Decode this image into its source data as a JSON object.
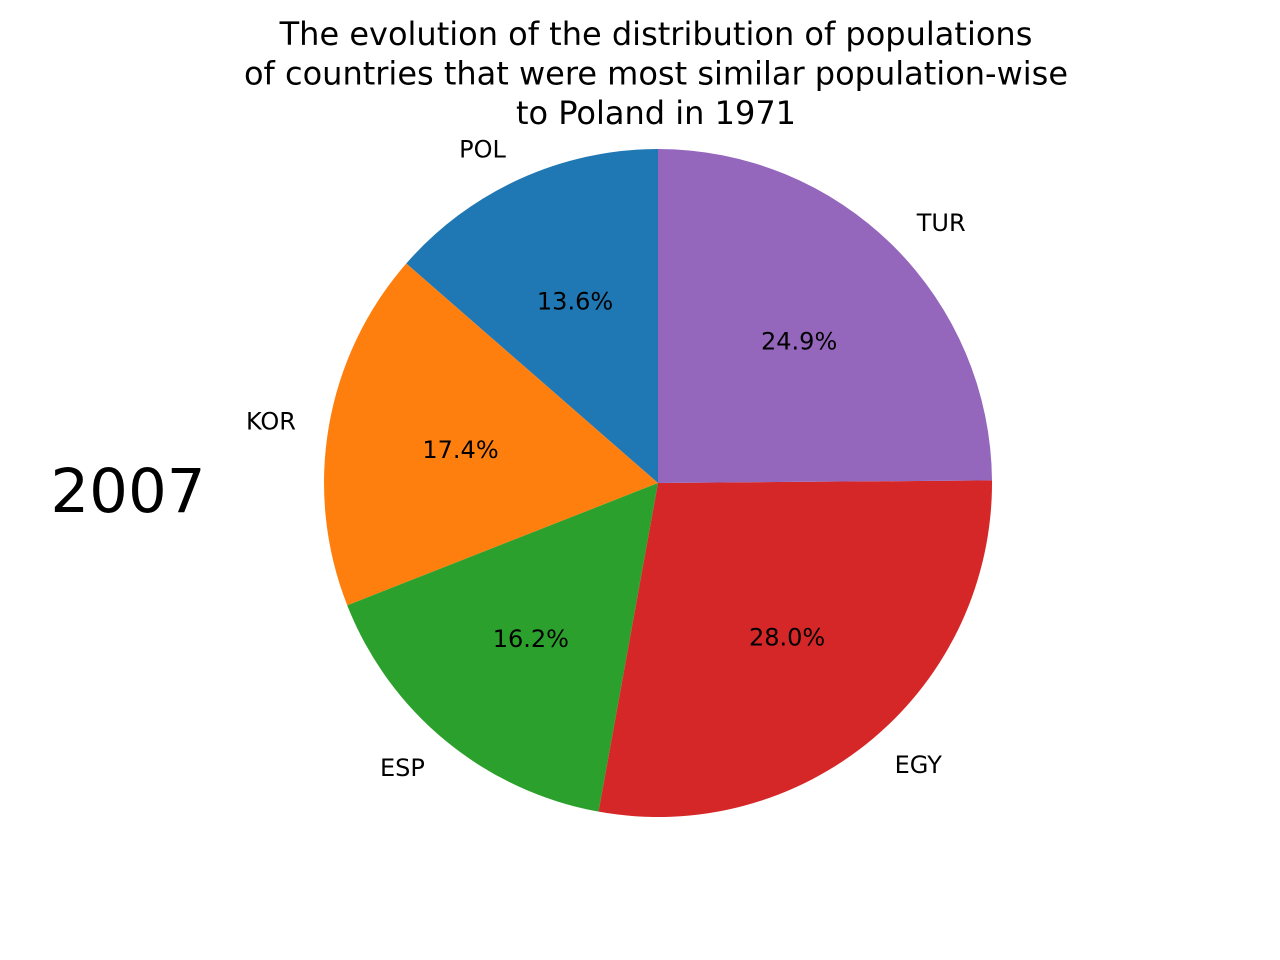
{
  "chart_data": {
    "type": "pie",
    "title": "The evolution of the distribution of populations\nof countries that were most similar population-wise\nto Poland in 1971",
    "annotation": "2007",
    "categories": [
      "POL",
      "KOR",
      "ESP",
      "EGY",
      "TUR"
    ],
    "values": [
      13.6,
      17.4,
      16.2,
      28.0,
      24.9
    ],
    "value_labels": [
      "13.6%",
      "17.4%",
      "16.2%",
      "28.0%",
      "24.9%"
    ],
    "colors": [
      "#1f77b4",
      "#ff7f0e",
      "#2ca02c",
      "#d62728",
      "#9467bd"
    ],
    "start_angle_deg": 90,
    "direction": "counterclockwise",
    "legend": "none"
  }
}
